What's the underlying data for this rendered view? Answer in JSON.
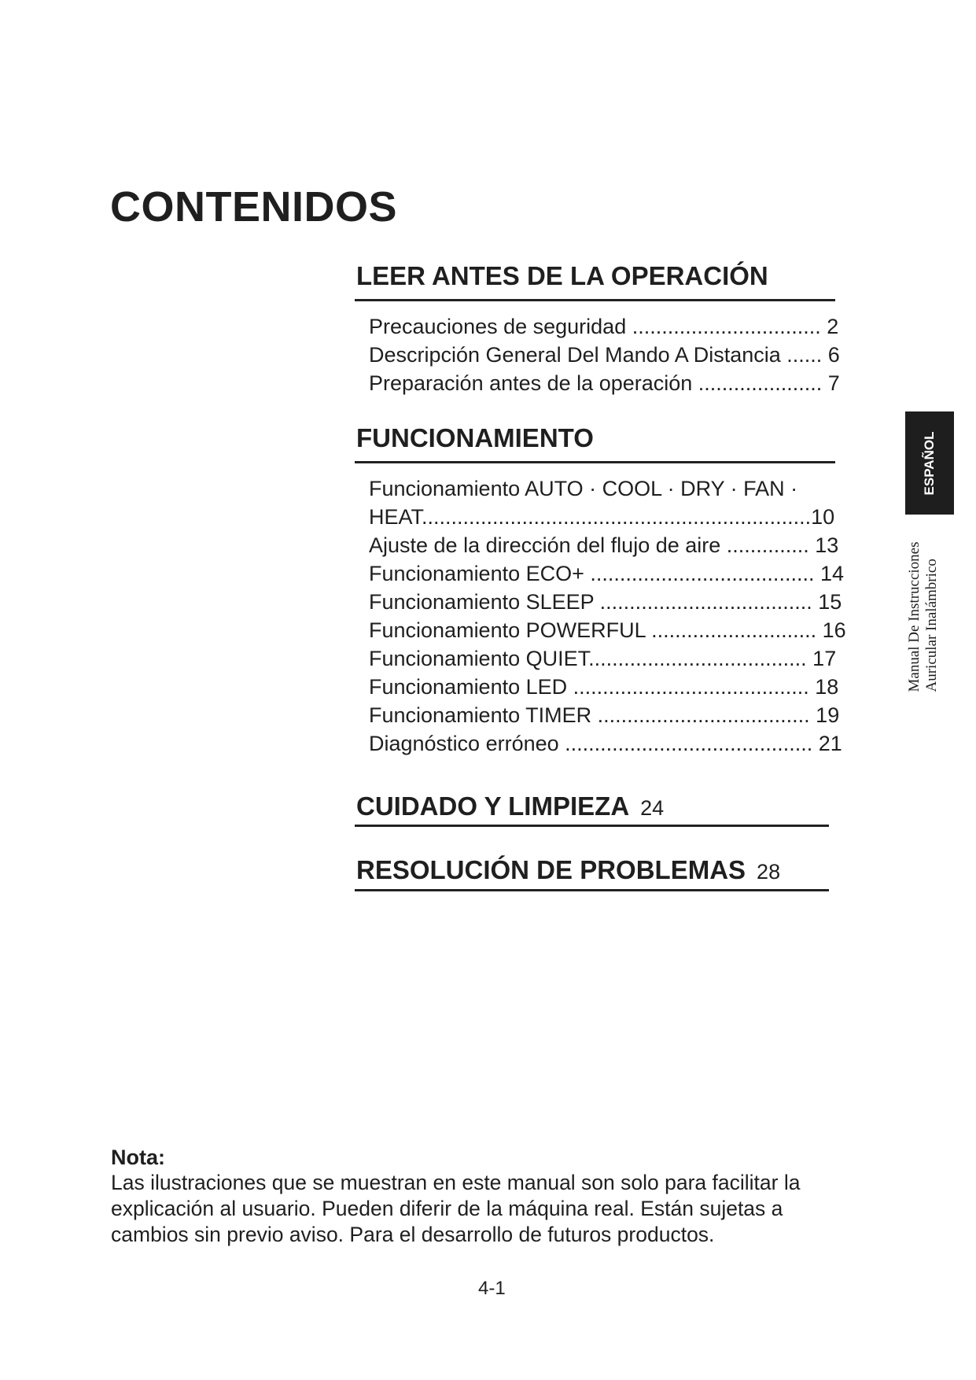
{
  "title": "CONTENIDOS",
  "sections": [
    {
      "heading": "LEER ANTES DE LA OPERACIÓN",
      "entries": [
        "Precauciones de seguridad ................................ 2",
        "Descripción General Del Mando A Distancia ...... 6",
        "Preparación antes de la operación ..................... 7"
      ]
    },
    {
      "heading": "FUNCIONAMIENTO",
      "entries": [
        "Funcionamiento AUTO · COOL · DRY · FAN ·",
        "HEAT..................................................................10",
        "Ajuste de la dirección del flujo de aire .............. 13",
        "Funcionamiento ECO+ ...................................... 14",
        "Funcionamiento SLEEP .................................... 15",
        "Funcionamiento POWERFUL ............................ 16",
        "Funcionamiento QUIET..................................... 17",
        "Funcionamiento LED ........................................ 18",
        "Funcionamiento TIMER .................................... 19",
        "Diagnóstico erróneo .......................................... 21"
      ]
    },
    {
      "heading": "CUIDADO Y LIMPIEZA",
      "page": "24"
    },
    {
      "heading": "RESOLUCIÓN DE PROBLEMAS",
      "page": "28"
    }
  ],
  "side_tab": "ESPAÑOL",
  "side_text": [
    "Manual De Instrucciones",
    "Auricular Inalámbrico"
  ],
  "note": {
    "heading": "Nota:",
    "lines": [
      "Las ilustraciones que se muestran en este manual son solo para facilitar la",
      "explicación al usuario. Pueden diferir de la máquina real. Están sujetas a",
      "cambios sin previo aviso. Para el desarrollo de futuros productos."
    ]
  },
  "page_number": "4-1"
}
